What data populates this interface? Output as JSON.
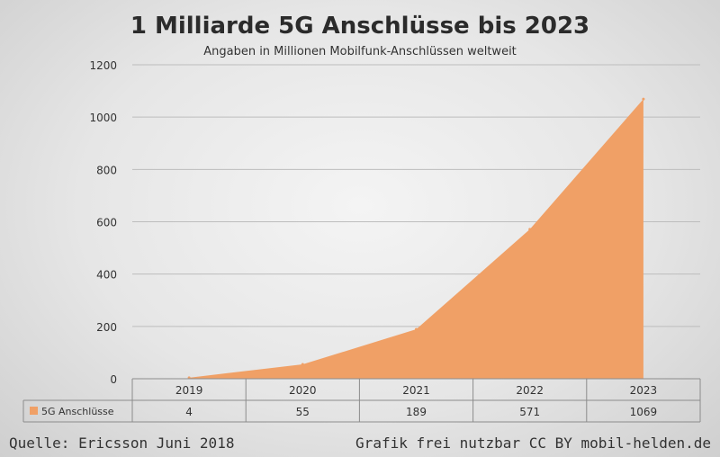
{
  "chart_data": {
    "type": "area",
    "title": "1 Milliarde 5G Anschlüsse bis 2023",
    "subtitle": "Angaben in Millionen Mobilfunk-Anschlüssen weltweit",
    "categories": [
      "2019",
      "2020",
      "2021",
      "2022",
      "2023"
    ],
    "series": [
      {
        "name": "5G Anschlüsse",
        "values": [
          4,
          55,
          189,
          571,
          1069
        ],
        "color": "#f0a066"
      }
    ],
    "yticks": [
      0,
      200,
      400,
      600,
      800,
      1000,
      1200
    ],
    "ylim": [
      0,
      1200
    ],
    "grid": true,
    "legend": "data-table"
  },
  "footer": {
    "source": "Quelle: Ericsson Juni 2018",
    "license": "Grafik frei nutzbar CC BY mobil-helden.de"
  },
  "colors": {
    "area": "#f0a066",
    "grid": "#bdbdbd",
    "text": "#333333"
  }
}
